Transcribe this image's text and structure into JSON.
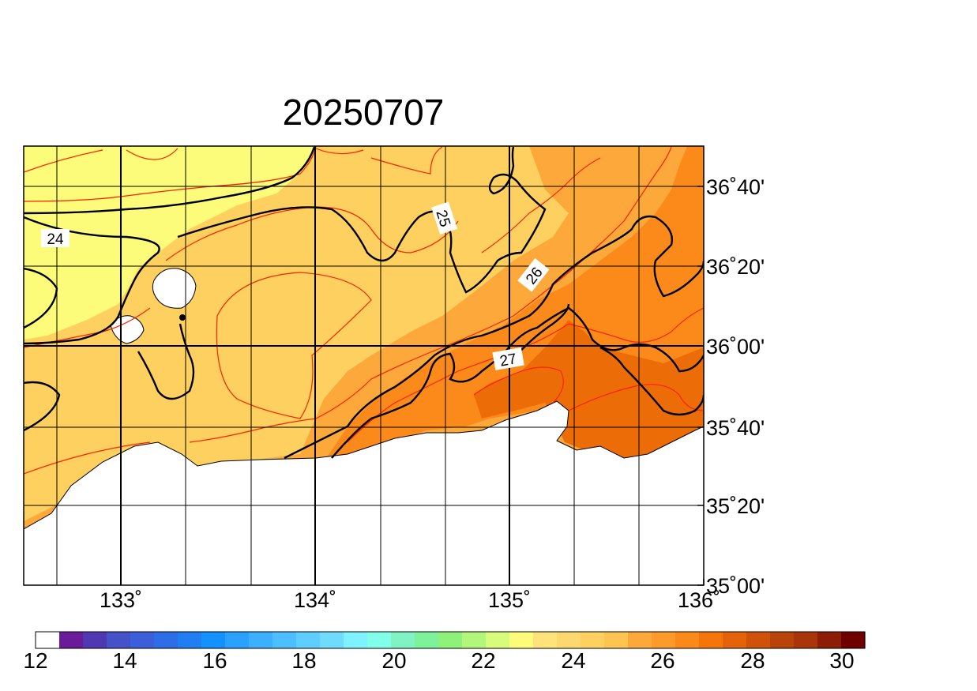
{
  "title": "20250707",
  "map": {
    "lon_labels": [
      "133˚",
      "134˚",
      "135˚",
      "136˚"
    ],
    "lat_labels": [
      "36˚40'",
      "36˚20'",
      "36˚00'",
      "35˚40'",
      "35˚20'",
      "35˚00'"
    ],
    "contour_labels": [
      "24",
      "25",
      "26",
      "27"
    ]
  },
  "colorbar": {
    "labels": [
      "12",
      "14",
      "16",
      "18",
      "20",
      "22",
      "24",
      "26",
      "28",
      "30"
    ],
    "colors": [
      "#ffffff",
      "#6a1b9a",
      "#5138b3",
      "#4451c7",
      "#3a5fd9",
      "#2d6ee6",
      "#1f7ff2",
      "#1490ff",
      "#2aa1ff",
      "#3cb0ff",
      "#4dbfff",
      "#5ecdff",
      "#6fdcff",
      "#7ff2ff",
      "#82ffe8",
      "#80f2c4",
      "#7ef29a",
      "#8ef27a",
      "#b3f77a",
      "#d7fb7a",
      "#fdfb7a",
      "#fde47a",
      "#fdd86e",
      "#fdd05f",
      "#fdc452",
      "#fca83a",
      "#fc9b2c",
      "#fc8a1a",
      "#f4760a",
      "#e4620a",
      "#d0520a",
      "#b8440a",
      "#a8360a",
      "#8c1e06",
      "#700000"
    ]
  },
  "fill_colors": {
    "c23": "#fdfb7a",
    "c24": "#fdd05f",
    "c25": "#fca83a",
    "c26": "#fc8a1a",
    "c27": "#ec6c08",
    "land": "#ffffff",
    "contour_black": "#000000",
    "contour_red": "#ff2000"
  }
}
